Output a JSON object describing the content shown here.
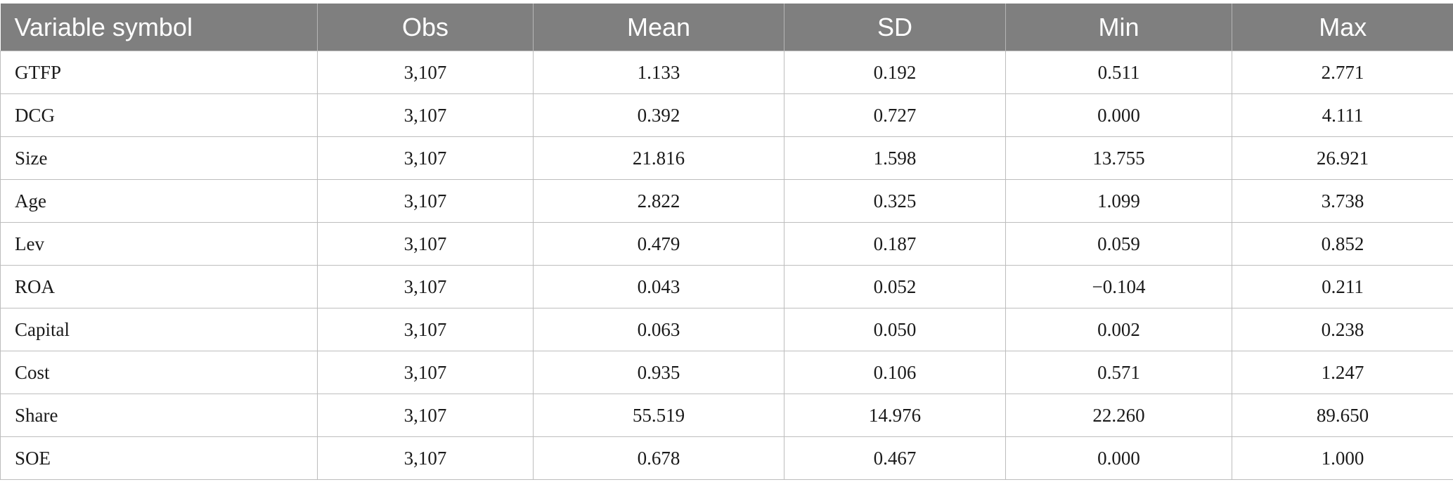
{
  "table": {
    "columns": [
      "Variable symbol",
      "Obs",
      "Mean",
      "SD",
      "Min",
      "Max"
    ],
    "rows": [
      [
        "GTFP",
        "3,107",
        "1.133",
        "0.192",
        "0.511",
        "2.771"
      ],
      [
        "DCG",
        "3,107",
        "0.392",
        "0.727",
        "0.000",
        "4.111"
      ],
      [
        "Size",
        "3,107",
        "21.816",
        "1.598",
        "13.755",
        "26.921"
      ],
      [
        "Age",
        "3,107",
        "2.822",
        "0.325",
        "1.099",
        "3.738"
      ],
      [
        "Lev",
        "3,107",
        "0.479",
        "0.187",
        "0.059",
        "0.852"
      ],
      [
        "ROA",
        "3,107",
        "0.043",
        "0.052",
        "−0.104",
        "0.211"
      ],
      [
        "Capital",
        "3,107",
        "0.063",
        "0.050",
        "0.002",
        "0.238"
      ],
      [
        "Cost",
        "3,107",
        "0.935",
        "0.106",
        "0.571",
        "1.247"
      ],
      [
        "Share",
        "3,107",
        "55.519",
        "14.976",
        "22.260",
        "89.650"
      ],
      [
        "SOE",
        "3,107",
        "0.678",
        "0.467",
        "0.000",
        "1.000"
      ]
    ]
  }
}
